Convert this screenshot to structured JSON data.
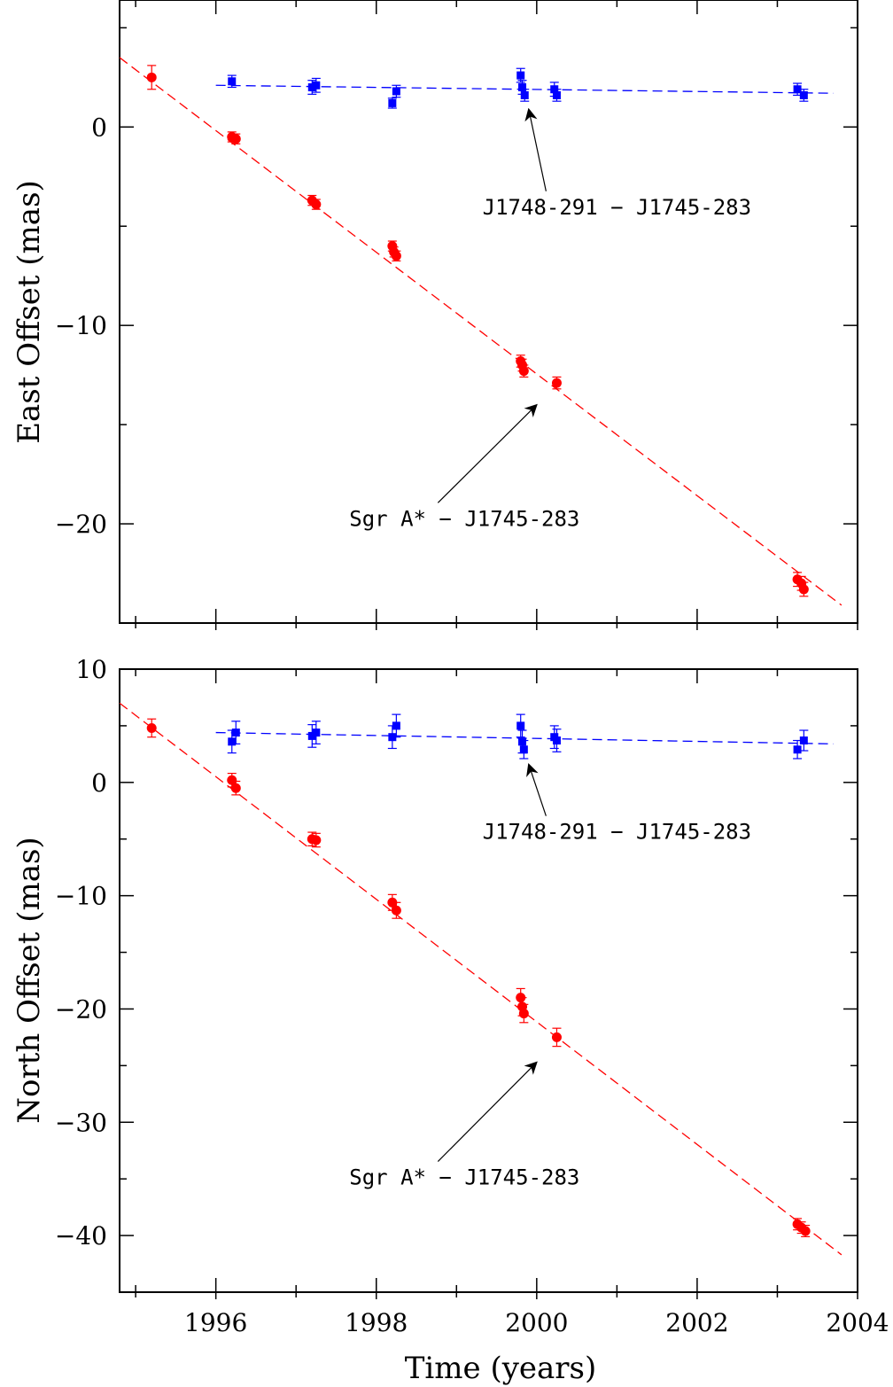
{
  "colors": {
    "sgr": "#ff0000",
    "j1748": "#0000ff",
    "axes": "#000000"
  },
  "chart_data": [
    {
      "type": "scatter",
      "ylabel": "East Offset (mas)",
      "xlabel": "",
      "xlim": [
        1994.8,
        2004
      ],
      "ylim": [
        -25,
        6.4
      ],
      "xticks_major": [
        1996,
        1998,
        2000,
        2002,
        2004
      ],
      "yticks_major": [
        0,
        -10,
        -20
      ],
      "ytick_labels": [
        "0",
        "−10",
        "−20"
      ],
      "series": [
        {
          "name": "Sgr A* - J1745-283",
          "marker": "circle",
          "color": "#ff0000",
          "points": [
            {
              "x": 1995.2,
              "y": 2.5,
              "err": 0.6
            },
            {
              "x": 1996.2,
              "y": -0.5,
              "err": 0.25
            },
            {
              "x": 1996.25,
              "y": -0.6,
              "err": 0.25
            },
            {
              "x": 1997.2,
              "y": -3.7,
              "err": 0.25
            },
            {
              "x": 1997.25,
              "y": -3.9,
              "err": 0.25
            },
            {
              "x": 1998.2,
              "y": -6.0,
              "err": 0.25
            },
            {
              "x": 1998.22,
              "y": -6.3,
              "err": 0.25
            },
            {
              "x": 1998.25,
              "y": -6.5,
              "err": 0.25
            },
            {
              "x": 1999.8,
              "y": -11.8,
              "err": 0.3
            },
            {
              "x": 1999.82,
              "y": -12.0,
              "err": 0.3
            },
            {
              "x": 1999.84,
              "y": -12.3,
              "err": 0.3
            },
            {
              "x": 2000.25,
              "y": -12.9,
              "err": 0.3
            },
            {
              "x": 2003.25,
              "y": -22.8,
              "err": 0.35
            },
            {
              "x": 2003.3,
              "y": -23.0,
              "err": 0.35
            },
            {
              "x": 2003.33,
              "y": -23.3,
              "err": 0.35
            }
          ],
          "fit": [
            [
              1994.8,
              3.5
            ],
            [
              2003.8,
              -24.1
            ]
          ]
        },
        {
          "name": "J1748-291 - J1745-283",
          "marker": "square",
          "color": "#0000ff",
          "points": [
            {
              "x": 1996.2,
              "y": 2.3,
              "err": 0.3
            },
            {
              "x": 1997.2,
              "y": 2.0,
              "err": 0.35
            },
            {
              "x": 1997.25,
              "y": 2.1,
              "err": 0.35
            },
            {
              "x": 1998.2,
              "y": 1.2,
              "err": 0.25
            },
            {
              "x": 1998.25,
              "y": 1.8,
              "err": 0.3
            },
            {
              "x": 1999.8,
              "y": 2.6,
              "err": 0.35
            },
            {
              "x": 1999.82,
              "y": 2.0,
              "err": 0.35
            },
            {
              "x": 1999.85,
              "y": 1.6,
              "err": 0.3
            },
            {
              "x": 2000.22,
              "y": 1.9,
              "err": 0.35
            },
            {
              "x": 2000.25,
              "y": 1.6,
              "err": 0.3
            },
            {
              "x": 2003.25,
              "y": 1.9,
              "err": 0.3
            },
            {
              "x": 2003.33,
              "y": 1.6,
              "err": 0.3
            }
          ],
          "fit": [
            [
              1996,
              2.1
            ],
            [
              2003.7,
              1.7
            ]
          ]
        }
      ],
      "annotations": [
        {
          "text": "J1748-291 − J1745-283",
          "x": 1999.9,
          "y": 0.9,
          "text_x": 2001.0,
          "text_y": -4.4
        },
        {
          "text": "Sgr A* − J1745-283",
          "x": 2000.0,
          "y": -14.0,
          "text_x": 1999.1,
          "text_y": -20.1
        }
      ]
    },
    {
      "type": "scatter",
      "ylabel": "North Offset (mas)",
      "xlabel": "Time (years)",
      "xlim": [
        1994.8,
        2004
      ],
      "ylim": [
        -45,
        10
      ],
      "xticks_major": [
        1996,
        1998,
        2000,
        2002,
        2004
      ],
      "xtick_labels": [
        "1996",
        "1998",
        "2000",
        "2002",
        "2004"
      ],
      "yticks_major": [
        10,
        0,
        -10,
        -20,
        -30,
        -40
      ],
      "ytick_labels": [
        "10",
        "0",
        "−10",
        "−20",
        "−30",
        "−40"
      ],
      "series": [
        {
          "name": "Sgr A* - J1745-283",
          "marker": "circle",
          "color": "#ff0000",
          "points": [
            {
              "x": 1995.2,
              "y": 4.8,
              "err": 0.8
            },
            {
              "x": 1996.2,
              "y": 0.2,
              "err": 0.6
            },
            {
              "x": 1996.25,
              "y": -0.5,
              "err": 0.6
            },
            {
              "x": 1997.2,
              "y": -5.0,
              "err": 0.6
            },
            {
              "x": 1997.25,
              "y": -5.1,
              "err": 0.6
            },
            {
              "x": 1998.2,
              "y": -10.6,
              "err": 0.7
            },
            {
              "x": 1998.25,
              "y": -11.3,
              "err": 0.7
            },
            {
              "x": 1999.8,
              "y": -19.0,
              "err": 0.8
            },
            {
              "x": 1999.82,
              "y": -19.8,
              "err": 0.8
            },
            {
              "x": 1999.84,
              "y": -20.4,
              "err": 0.8
            },
            {
              "x": 2000.25,
              "y": -22.5,
              "err": 0.8
            },
            {
              "x": 2003.25,
              "y": -39.0,
              "err": 0.5
            },
            {
              "x": 2003.3,
              "y": -39.3,
              "err": 0.5
            },
            {
              "x": 2003.35,
              "y": -39.6,
              "err": 0.5
            }
          ],
          "fit": [
            [
              1994.8,
              7.0
            ],
            [
              2003.8,
              -41.7
            ]
          ]
        },
        {
          "name": "J1748-291 - J1745-283",
          "marker": "square",
          "color": "#0000ff",
          "points": [
            {
              "x": 1996.2,
              "y": 3.6,
              "err": 1.0
            },
            {
              "x": 1996.25,
              "y": 4.4,
              "err": 1.0
            },
            {
              "x": 1997.2,
              "y": 4.1,
              "err": 1.0
            },
            {
              "x": 1997.25,
              "y": 4.4,
              "err": 1.0
            },
            {
              "x": 1998.2,
              "y": 4.0,
              "err": 1.0
            },
            {
              "x": 1998.25,
              "y": 5.0,
              "err": 1.0
            },
            {
              "x": 1999.8,
              "y": 5.0,
              "err": 1.0
            },
            {
              "x": 1999.82,
              "y": 3.6,
              "err": 1.0
            },
            {
              "x": 1999.84,
              "y": 2.9,
              "err": 0.8
            },
            {
              "x": 2000.22,
              "y": 4.0,
              "err": 1.0
            },
            {
              "x": 2000.25,
              "y": 3.7,
              "err": 1.0
            },
            {
              "x": 2003.25,
              "y": 2.9,
              "err": 0.8
            },
            {
              "x": 2003.33,
              "y": 3.7,
              "err": 0.9
            }
          ],
          "fit": [
            [
              1996,
              4.4
            ],
            [
              2003.7,
              3.4
            ]
          ]
        }
      ],
      "annotations": [
        {
          "text": "J1748-291 − J1745-283",
          "x": 1999.9,
          "y": 1.6,
          "text_x": 2001.0,
          "text_y": -5.0
        },
        {
          "text": "Sgr A* − J1745-283",
          "x": 2000.0,
          "y": -24.7,
          "text_x": 1999.1,
          "text_y": -35.5
        }
      ]
    }
  ]
}
